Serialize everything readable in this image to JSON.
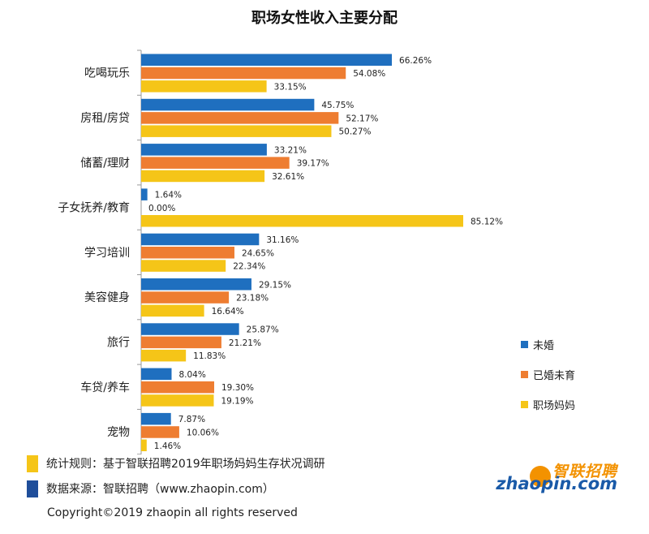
{
  "colors": {
    "unmarried": "#1f6fbf",
    "married_no_child": "#ee7d31",
    "mom": "#f5c518",
    "note1": "#f5c518",
    "note2": "#1f4e9a"
  },
  "chart_data": {
    "type": "bar",
    "orientation": "horizontal",
    "title": "职场女性收入主要分配",
    "categories": [
      "吃喝玩乐",
      "房租/房贷",
      "储蓄/理财",
      "子女抚养/教育",
      "学习培训",
      "美容健身",
      "旅行",
      "车贷/养车",
      "宠物"
    ],
    "series": [
      {
        "name": "未婚",
        "values": [
          66.26,
          45.75,
          33.21,
          1.64,
          31.16,
          29.15,
          25.87,
          8.04,
          7.87
        ],
        "labels": [
          "66.26%",
          "45.75%",
          "33.21%",
          "1.64%",
          "31.16%",
          "29.15%",
          "25.87%",
          "8.04%",
          "7.87%"
        ]
      },
      {
        "name": "已婚未育",
        "values": [
          54.08,
          52.17,
          39.17,
          0.0,
          24.65,
          23.18,
          21.21,
          19.3,
          10.06
        ],
        "labels": [
          "54.08%",
          "52.17%",
          "39.17%",
          "0.00%",
          "24.65%",
          "23.18%",
          "21.21%",
          "19.30%",
          "10.06%"
        ]
      },
      {
        "name": "职场妈妈",
        "values": [
          33.15,
          50.27,
          32.61,
          85.12,
          22.34,
          16.64,
          11.83,
          19.19,
          1.46
        ],
        "labels": [
          "33.15%",
          "50.27%",
          "32.61%",
          "85.12%",
          "22.34%",
          "16.64%",
          "11.83%",
          "19.19%",
          "1.46%"
        ]
      }
    ],
    "xlim": [
      0,
      85.12
    ],
    "legend_position": "right",
    "grid": false
  },
  "notes": {
    "rule": "统计规则：基于智联招聘2019年职场妈妈生存状况调研",
    "source": "数据来源：智联招聘（www.zhaopin.com）"
  },
  "copyright": "Copyright©2019 zhaopin all rights reserved",
  "logo": {
    "cn": "智联招聘",
    "en": "zhaopin.com"
  }
}
